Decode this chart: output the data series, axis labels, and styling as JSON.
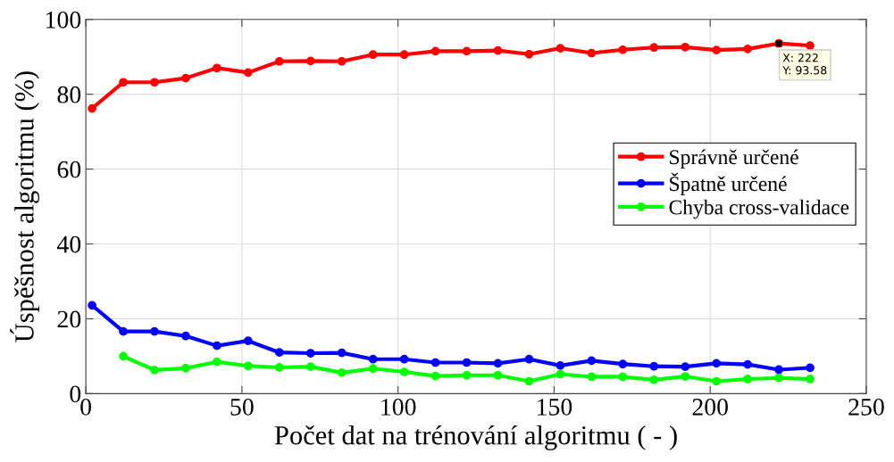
{
  "chart_data": {
    "type": "line",
    "xlabel": "Počet dat na trénování algoritmu ( - )",
    "ylabel": "Úspěšnost algoritmu (%)",
    "x": [
      2,
      12,
      22,
      32,
      42,
      52,
      62,
      72,
      82,
      92,
      102,
      112,
      122,
      132,
      142,
      152,
      162,
      172,
      182,
      192,
      202,
      212,
      222,
      232
    ],
    "series": [
      {
        "name": "Správně určené",
        "color": "#ff0000",
        "values": [
          76.2,
          83.2,
          83.2,
          84.3,
          87.0,
          85.8,
          88.8,
          88.9,
          88.8,
          90.6,
          90.6,
          91.5,
          91.5,
          91.7,
          90.7,
          92.3,
          91.0,
          91.9,
          92.5,
          92.6,
          91.8,
          92.1,
          93.58,
          93.0
        ]
      },
      {
        "name": "Špatně určené",
        "color": "#0000ff",
        "values": [
          23.6,
          16.6,
          16.6,
          15.4,
          12.8,
          14.1,
          11.0,
          10.8,
          10.9,
          9.2,
          9.2,
          8.3,
          8.3,
          8.1,
          9.2,
          7.5,
          8.8,
          7.9,
          7.3,
          7.2,
          8.1,
          7.8,
          6.4,
          6.9
        ]
      },
      {
        "name": "Chyba cross-validace",
        "color": "#00ff00",
        "values": [
          null,
          10.0,
          6.3,
          6.8,
          8.5,
          7.4,
          7.0,
          7.2,
          5.6,
          6.7,
          5.8,
          4.7,
          4.9,
          4.9,
          3.3,
          5.2,
          4.5,
          4.5,
          3.7,
          4.6,
          3.3,
          3.9,
          4.2,
          3.9
        ]
      }
    ],
    "xlim": [
      0,
      250
    ],
    "xticks": [
      0,
      50,
      100,
      150,
      200,
      250
    ],
    "ylim": [
      0,
      100
    ],
    "yticks": [
      0,
      20,
      40,
      60,
      80,
      100
    ],
    "grid": true,
    "legend": "center right",
    "marker": "circle",
    "line_style": "solid",
    "annotations": [
      {
        "text": "X: 222\nY: 93.58",
        "x": 222,
        "y": 93.58
      }
    ]
  }
}
